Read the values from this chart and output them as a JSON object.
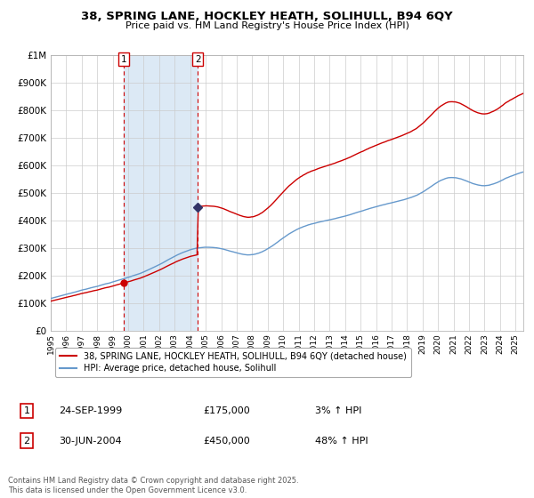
{
  "title": "38, SPRING LANE, HOCKLEY HEATH, SOLIHULL, B94 6QY",
  "subtitle": "Price paid vs. HM Land Registry's House Price Index (HPI)",
  "background_color": "#ffffff",
  "plot_bg_color": "#ffffff",
  "grid_color": "#cccccc",
  "purchase1": {
    "date_num": 1999.73,
    "price": 175000,
    "label": "1",
    "date_str": "24-SEP-1999",
    "pct": "3%"
  },
  "purchase2": {
    "date_num": 2004.49,
    "price": 450000,
    "label": "2",
    "date_str": "30-JUN-2004",
    "pct": "48%"
  },
  "highlight_color": "#dce9f5",
  "dashed_line_color": "#cc0000",
  "red_line_color": "#cc0000",
  "blue_line_color": "#6699cc",
  "marker_color": "#333366",
  "ylim": [
    0,
    1000000
  ],
  "xlim_start": 1995.0,
  "xlim_end": 2025.5,
  "legend1": "38, SPRING LANE, HOCKLEY HEATH, SOLIHULL, B94 6QY (detached house)",
  "legend2": "HPI: Average price, detached house, Solihull",
  "footer": "Contains HM Land Registry data © Crown copyright and database right 2025.\nThis data is licensed under the Open Government Licence v3.0.",
  "yticks": [
    0,
    100000,
    200000,
    300000,
    400000,
    500000,
    600000,
    700000,
    800000,
    900000,
    1000000
  ],
  "ytick_labels": [
    "£0",
    "£100K",
    "£200K",
    "£300K",
    "£400K",
    "£500K",
    "£600K",
    "£700K",
    "£800K",
    "£900K",
    "£1M"
  ],
  "title_fontsize": 9.5,
  "subtitle_fontsize": 8.0
}
